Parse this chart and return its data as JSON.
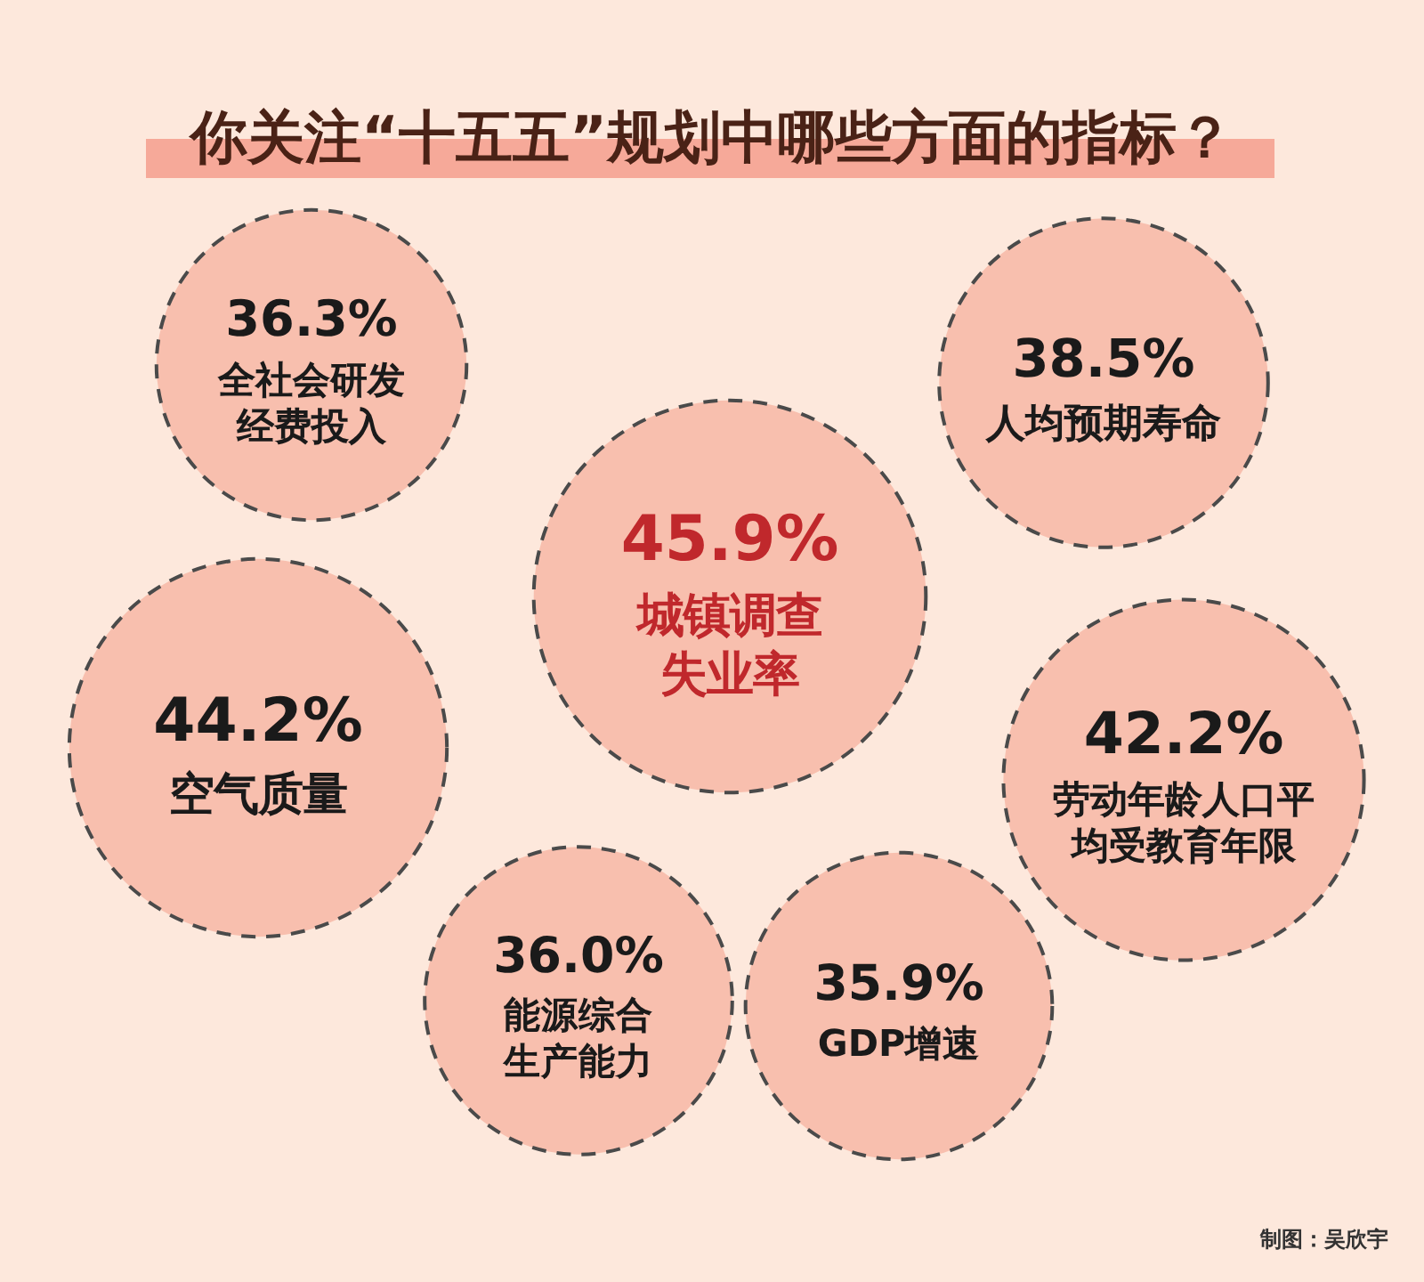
{
  "chart_data": {
    "type": "other",
    "title": "你关注“十五五”规划中哪些方面的指标？",
    "categories": [
      "全社会研发经费投入",
      "人均预期寿命",
      "城镇调查失业率",
      "空气质量",
      "劳动年龄人口平均受教育年限",
      "能源综合生产能力",
      "GDP增速"
    ],
    "values": [
      36.3,
      38.5,
      45.9,
      44.2,
      42.2,
      36.0,
      35.9
    ],
    "value_labels": [
      "36.3%",
      "38.5%",
      "45.9%",
      "44.2%",
      "42.2%",
      "36.0%",
      "35.9%"
    ],
    "colors": [
      "#f8bfae",
      "#f8bfae",
      "#f8bfae",
      "#f8bfae",
      "#f8bfae",
      "#f8bfae",
      "#f8bfae"
    ],
    "annotations": [
      "制图：吴欣宇"
    ]
  }
}
